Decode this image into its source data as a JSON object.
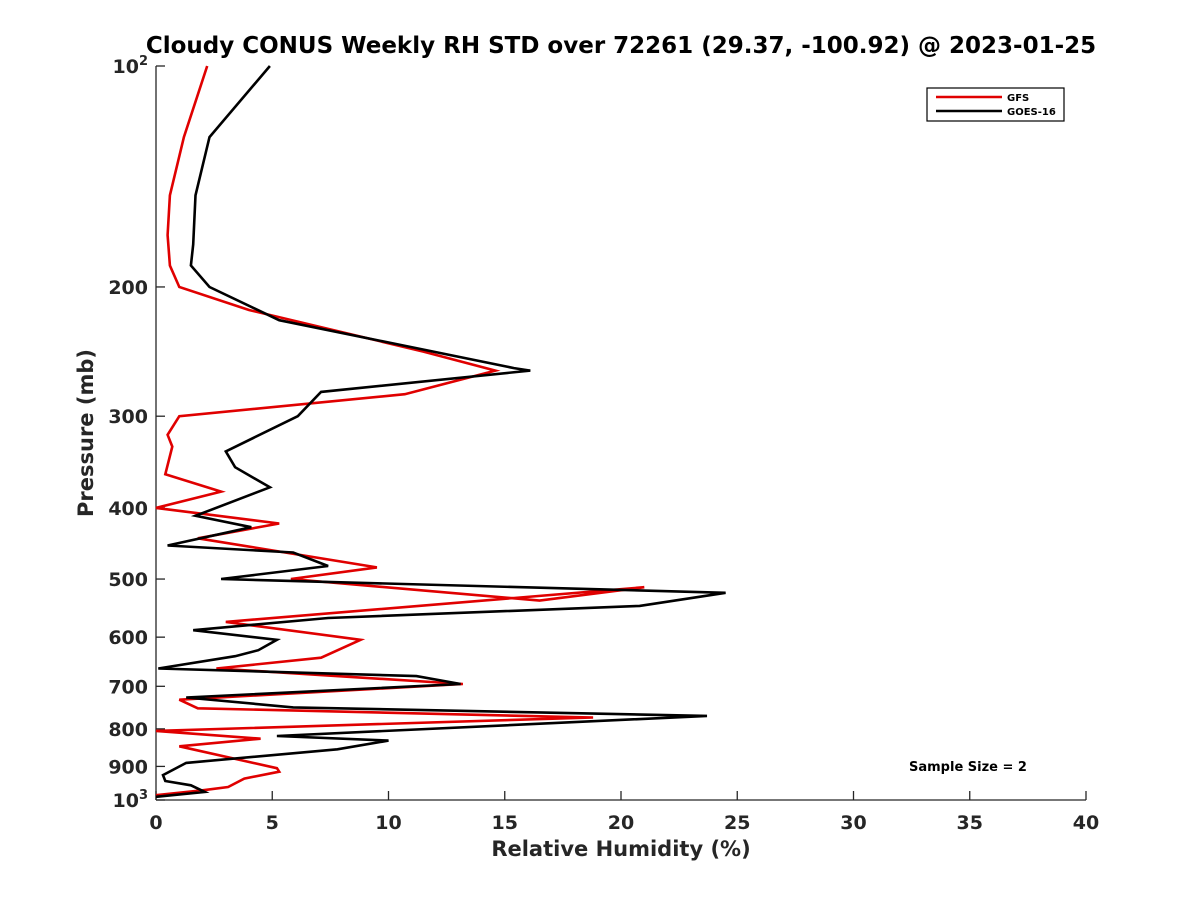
{
  "chart_data": {
    "type": "line",
    "title": "Cloudy CONUS Weekly RH STD over 72261 (29.37, -100.92) @ 2023-01-25",
    "xlabel": "Relative Humidity (%)",
    "ylabel": "Pressure (mb)",
    "xlim": [
      0,
      40
    ],
    "ylim": [
      100,
      1000
    ],
    "y_scale": "log",
    "y_reversed": true,
    "grid": false,
    "legend_position": "top-right",
    "x_ticks": [
      0,
      5,
      10,
      15,
      20,
      25,
      30,
      35,
      40
    ],
    "y_ticks": [
      {
        "value": 100,
        "label": "10",
        "sup": "2"
      },
      {
        "value": 200,
        "label": "200",
        "sup": ""
      },
      {
        "value": 300,
        "label": "300",
        "sup": ""
      },
      {
        "value": 400,
        "label": "400",
        "sup": ""
      },
      {
        "value": 500,
        "label": "500",
        "sup": ""
      },
      {
        "value": 600,
        "label": "600",
        "sup": ""
      },
      {
        "value": 700,
        "label": "700",
        "sup": ""
      },
      {
        "value": 800,
        "label": "800",
        "sup": ""
      },
      {
        "value": 900,
        "label": "900",
        "sup": ""
      },
      {
        "value": 1000,
        "label": "10",
        "sup": "3"
      }
    ],
    "annotation": "Sample Size = 2",
    "series": [
      {
        "name": "GFS",
        "color": "#e00000",
        "points": [
          [
            2.2,
            100
          ],
          [
            1.2,
            125
          ],
          [
            0.6,
            150
          ],
          [
            0.5,
            170
          ],
          [
            0.6,
            187
          ],
          [
            1.0,
            200
          ],
          [
            4.0,
            215
          ],
          [
            11.5,
            245
          ],
          [
            14.6,
            260
          ],
          [
            10.7,
            280
          ],
          [
            1.0,
            300
          ],
          [
            0.5,
            318
          ],
          [
            0.7,
            330
          ],
          [
            0.4,
            360
          ],
          [
            2.8,
            380
          ],
          [
            0.0,
            400
          ],
          [
            5.3,
            420
          ],
          [
            1.8,
            440
          ],
          [
            9.5,
            482
          ],
          [
            5.8,
            500
          ],
          [
            16.5,
            535
          ],
          [
            21.0,
            513
          ],
          [
            3.0,
            572
          ],
          [
            8.8,
            605
          ],
          [
            7.1,
            640
          ],
          [
            2.6,
            662
          ],
          [
            13.2,
            695
          ],
          [
            1.0,
            730
          ],
          [
            1.8,
            750
          ],
          [
            18.8,
            772
          ],
          [
            0.0,
            805
          ],
          [
            4.5,
            825
          ],
          [
            1.0,
            845
          ],
          [
            5.2,
            905
          ],
          [
            5.3,
            915
          ],
          [
            3.8,
            935
          ],
          [
            3.1,
            960
          ],
          [
            2.0,
            970
          ],
          [
            0.0,
            985
          ]
        ]
      },
      {
        "name": "GOES-16",
        "color": "#000000",
        "points": [
          [
            4.9,
            100
          ],
          [
            2.3,
            125
          ],
          [
            1.7,
            150
          ],
          [
            1.6,
            175
          ],
          [
            1.5,
            187
          ],
          [
            2.3,
            200
          ],
          [
            5.3,
            222
          ],
          [
            15.4,
            258
          ],
          [
            16.1,
            260
          ],
          [
            7.1,
            278
          ],
          [
            6.1,
            300
          ],
          [
            3.0,
            335
          ],
          [
            3.4,
            352
          ],
          [
            4.9,
            375
          ],
          [
            1.7,
            410
          ],
          [
            4.1,
            425
          ],
          [
            0.5,
            450
          ],
          [
            5.9,
            460
          ],
          [
            7.4,
            480
          ],
          [
            2.8,
            500
          ],
          [
            24.5,
            522
          ],
          [
            20.8,
            544
          ],
          [
            7.4,
            565
          ],
          [
            1.6,
            587
          ],
          [
            5.2,
            605
          ],
          [
            4.4,
            625
          ],
          [
            3.4,
            637
          ],
          [
            0.1,
            662
          ],
          [
            11.2,
            678
          ],
          [
            13.1,
            695
          ],
          [
            1.3,
            725
          ],
          [
            5.9,
            748
          ],
          [
            23.7,
            768
          ],
          [
            5.2,
            818
          ],
          [
            10.0,
            830
          ],
          [
            7.8,
            853
          ],
          [
            1.3,
            890
          ],
          [
            0.3,
            925
          ],
          [
            0.4,
            942
          ],
          [
            1.5,
            955
          ],
          [
            2.1,
            975
          ],
          [
            0.0,
            990
          ]
        ]
      }
    ]
  }
}
